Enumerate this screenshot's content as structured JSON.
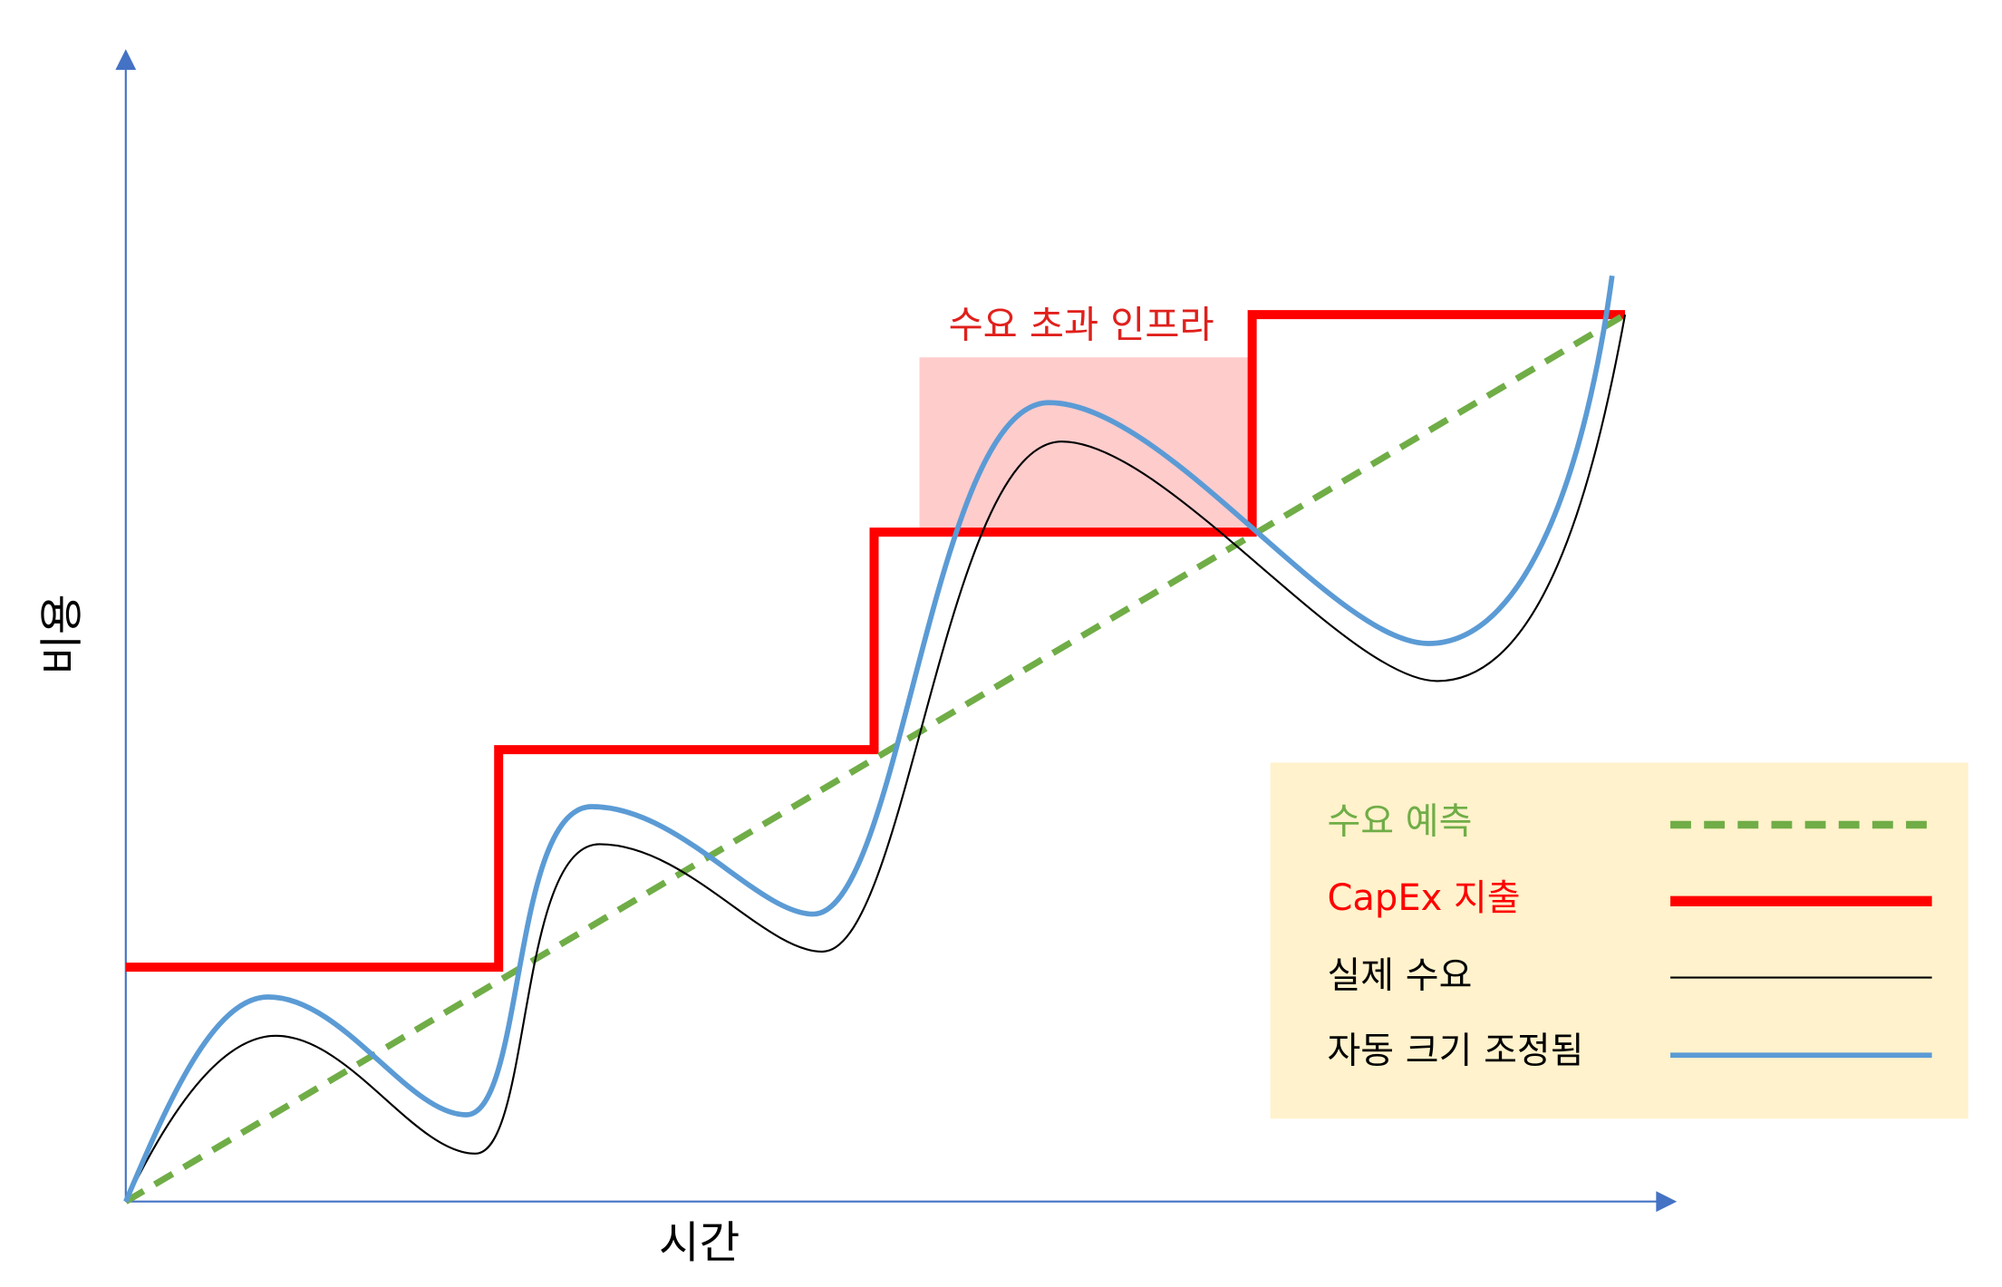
{
  "axes": {
    "y_label": "비용",
    "x_label": "시간"
  },
  "annotation": "수요 초과 인프라",
  "legend": {
    "items": [
      "수요 예측",
      "CapEx 지출",
      "실제 수요",
      "자동 크기 조정됨"
    ]
  }
}
